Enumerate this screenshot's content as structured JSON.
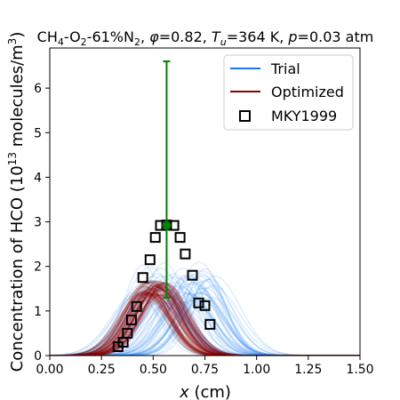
{
  "chart_data": {
    "type": "line",
    "title": {
      "mixture": "CH",
      "mixture_sub1": "4",
      "mixture_rest": "-O",
      "mixture_sub2": "2",
      "mixture_tail": "-61%N",
      "mixture_sub3": "2",
      "phi_sym": "φ",
      "phi_val": "=0.82, ",
      "t_sym": "T",
      "t_sub": "u",
      "t_val": "=364 K, ",
      "p_sym": "p",
      "p_val": "=0.03 atm"
    },
    "xlabel": {
      "var": "x",
      "unit": " (cm)"
    },
    "ylabel": {
      "main": "Concentration of HCO (10",
      "sup1": "13",
      "mid": " molecules/m",
      "sup2": "3",
      "end": ")"
    },
    "xlim": [
      0,
      1.5
    ],
    "ylim": [
      0,
      6.9
    ],
    "xticks": [
      "0.00",
      "0.25",
      "0.50",
      "0.75",
      "1.00",
      "1.25",
      "1.50"
    ],
    "yticks": [
      "0",
      "1",
      "2",
      "3",
      "4",
      "5",
      "6"
    ],
    "grid": false,
    "legend_placement": "top-right",
    "legend": [
      {
        "label": "Trial",
        "kind": "line",
        "color": "#1f77f0"
      },
      {
        "label": "Optimized",
        "kind": "line",
        "color": "#8b0000"
      },
      {
        "label": "MKY1999",
        "kind": "square-marker",
        "color": "#000000"
      }
    ],
    "series": [
      {
        "name": "MKY1999",
        "kind": "markers",
        "x": [
          0.33,
          0.355,
          0.375,
          0.395,
          0.42,
          0.45,
          0.485,
          0.51,
          0.535,
          0.565,
          0.6,
          0.63,
          0.655,
          0.69,
          0.72,
          0.75,
          0.775
        ],
        "y": [
          0.2,
          0.3,
          0.5,
          0.8,
          1.1,
          1.75,
          2.15,
          2.65,
          2.92,
          2.93,
          2.92,
          2.65,
          2.28,
          1.8,
          1.18,
          1.12,
          0.7
        ]
      },
      {
        "name": "Trial",
        "kind": "gaussian-ensemble",
        "color": "#1e7cf0",
        "count": 70,
        "center_range": [
          0.42,
          0.8
        ],
        "peak_range": [
          1.1,
          2.1
        ],
        "width_range": [
          0.09,
          0.14
        ]
      },
      {
        "name": "Optimized",
        "kind": "gaussian-ensemble",
        "color": "#8b0000",
        "count": 70,
        "center_range": [
          0.45,
          0.56
        ],
        "peak_range": [
          1.35,
          1.7
        ],
        "width_range": [
          0.095,
          0.12
        ]
      },
      {
        "name": "error-bar",
        "kind": "errorbar",
        "color": "#008000",
        "x": 0.565,
        "y": 2.92,
        "y_low": 1.3,
        "y_high": 6.6
      }
    ]
  }
}
